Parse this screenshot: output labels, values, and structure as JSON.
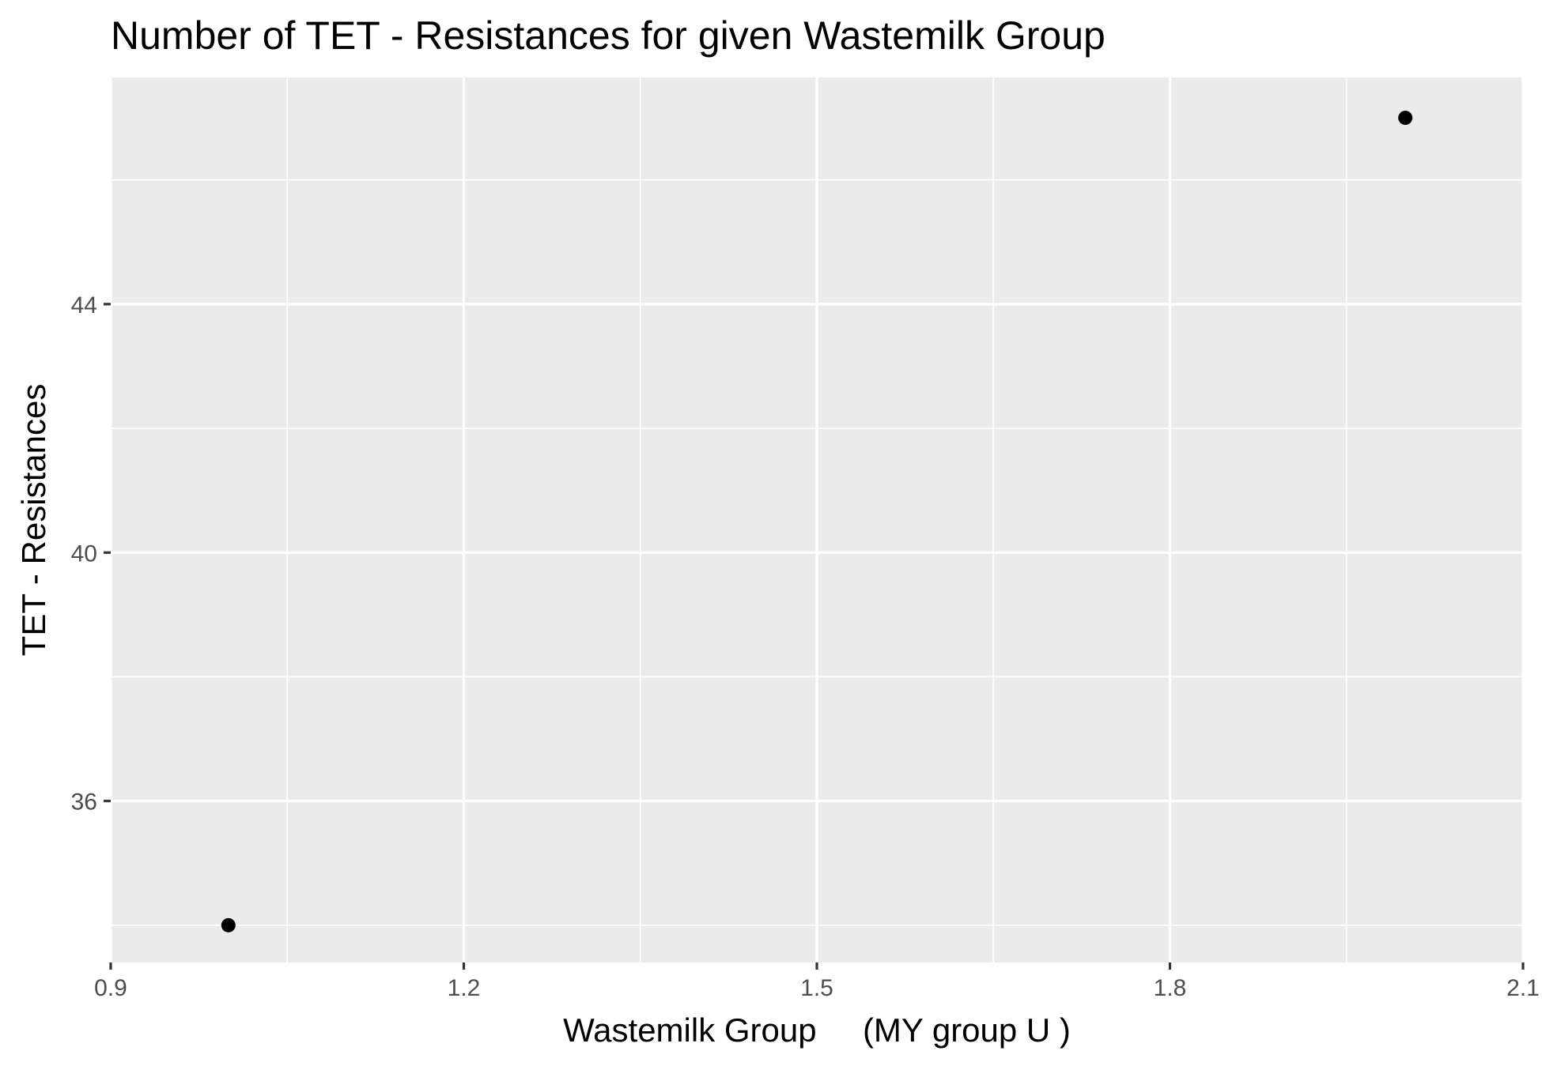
{
  "chart_data": {
    "type": "scatter",
    "title": "Number of TET - Resistances for given Wastemilk Group",
    "xlabel": "Wastemilk Group     (MY group U )",
    "ylabel": "TET - Resistances",
    "x_ticks": [
      0.9,
      1.2,
      1.5,
      1.8,
      2.1
    ],
    "x_tick_labels": [
      "0.9",
      "1.2",
      "1.5",
      "1.8",
      "2.1"
    ],
    "y_ticks": [
      36,
      40,
      44
    ],
    "y_tick_labels": [
      "36",
      "40",
      "44"
    ],
    "x_minor_ticks": [
      1.05,
      1.35,
      1.65,
      1.95
    ],
    "y_minor_ticks": [
      34,
      38,
      42,
      46
    ],
    "xlim": [
      0.9,
      2.1
    ],
    "ylim": [
      33.4,
      47.65
    ],
    "points": [
      {
        "x": 1.0,
        "y": 34
      },
      {
        "x": 2.0,
        "y": 47
      }
    ],
    "grid": true,
    "legend": "none",
    "colors": {
      "panel_background": "#ebebeb",
      "grid": "#ffffff",
      "point": "#000000",
      "tick_text": "#4d4d4d",
      "tick_mark": "#333333"
    }
  }
}
